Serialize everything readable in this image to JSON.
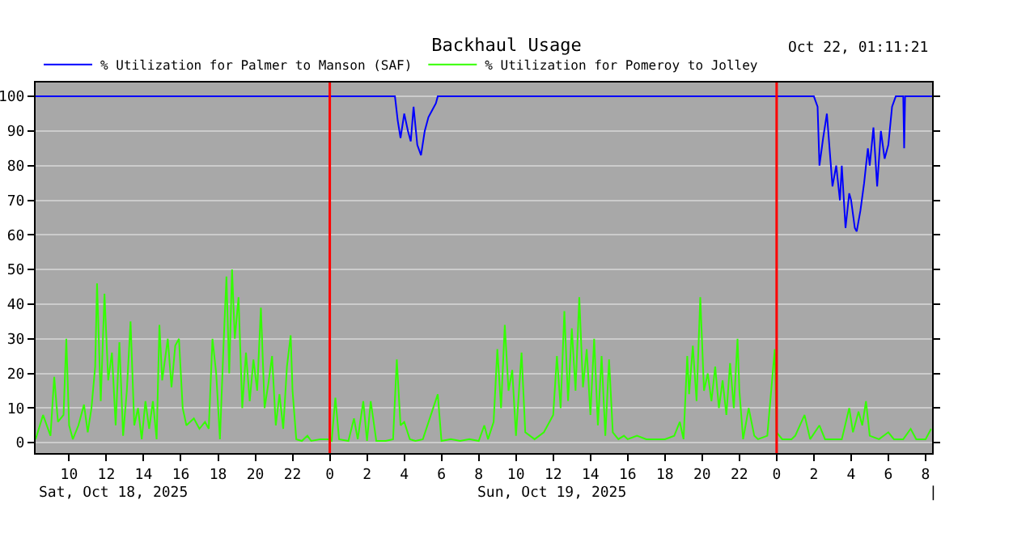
{
  "chart_data": {
    "type": "line",
    "title": "Backhaul Usage",
    "annotations": [
      "Oct 22, 01:11:21",
      "Sat, Oct 18, 2025",
      "Sun, Oct 19, 2025",
      "|"
    ],
    "xlim": [
      "2025-10-18T08:12",
      "2025-10-20T08:21"
    ],
    "xticks": [
      {
        "value": "2025-10-18T10:00",
        "label": "10"
      },
      {
        "value": "2025-10-18T12:00",
        "label": "12"
      },
      {
        "value": "2025-10-18T14:00",
        "label": "14"
      },
      {
        "value": "2025-10-18T16:00",
        "label": "16"
      },
      {
        "value": "2025-10-18T18:00",
        "label": "18"
      },
      {
        "value": "2025-10-18T20:00",
        "label": "20"
      },
      {
        "value": "2025-10-18T22:00",
        "label": "22"
      },
      {
        "value": "2025-10-19T00:00",
        "label": "0"
      },
      {
        "value": "2025-10-19T02:00",
        "label": "2"
      },
      {
        "value": "2025-10-19T04:00",
        "label": "4"
      },
      {
        "value": "2025-10-19T06:00",
        "label": "6"
      },
      {
        "value": "2025-10-19T08:00",
        "label": "8"
      },
      {
        "value": "2025-10-19T10:00",
        "label": "10"
      },
      {
        "value": "2025-10-19T12:00",
        "label": "12"
      },
      {
        "value": "2025-10-19T14:00",
        "label": "14"
      },
      {
        "value": "2025-10-19T16:00",
        "label": "16"
      },
      {
        "value": "2025-10-19T18:00",
        "label": "18"
      },
      {
        "value": "2025-10-19T20:00",
        "label": "20"
      },
      {
        "value": "2025-10-19T22:00",
        "label": "22"
      },
      {
        "value": "2025-10-20T00:00",
        "label": "0"
      },
      {
        "value": "2025-10-20T02:00",
        "label": "2"
      },
      {
        "value": "2025-10-20T04:00",
        "label": "4"
      },
      {
        "value": "2025-10-20T06:00",
        "label": "6"
      },
      {
        "value": "2025-10-20T08:00",
        "label": "8"
      }
    ],
    "ylim": [
      -3,
      104
    ],
    "yticks": [
      0,
      10,
      20,
      30,
      40,
      50,
      60,
      70,
      80,
      90,
      100
    ],
    "grid": "y",
    "legend": "top left",
    "marker": "none",
    "line_style": "solid",
    "ref_lines": [
      {
        "axis": "x",
        "value": "2025-10-19T00:00",
        "color": "#ff0000"
      },
      {
        "axis": "x",
        "value": "2025-10-20T00:00",
        "color": "#ff0000"
      }
    ],
    "series": [
      {
        "name": "% Utilization for Palmer to Manson (SAF)",
        "color": "#0000ff",
        "x": [
          "2025-10-18T08:12",
          "2025-10-19T03:30",
          "2025-10-19T03:39",
          "2025-10-19T03:48",
          "2025-10-19T04:00",
          "2025-10-19T04:12",
          "2025-10-19T04:21",
          "2025-10-19T04:30",
          "2025-10-19T04:42",
          "2025-10-19T04:54",
          "2025-10-19T05:06",
          "2025-10-19T05:18",
          "2025-10-19T05:30",
          "2025-10-19T05:42",
          "2025-10-19T05:48",
          "2025-10-20T02:00",
          "2025-10-20T02:12",
          "2025-10-20T02:18",
          "2025-10-20T02:30",
          "2025-10-20T02:42",
          "2025-10-20T02:54",
          "2025-10-20T03:00",
          "2025-10-20T03:12",
          "2025-10-20T03:24",
          "2025-10-20T03:30",
          "2025-10-20T03:42",
          "2025-10-20T03:54",
          "2025-10-20T04:00",
          "2025-10-20T04:12",
          "2025-10-20T04:18",
          "2025-10-20T04:30",
          "2025-10-20T04:42",
          "2025-10-20T04:54",
          "2025-10-20T05:00",
          "2025-10-20T05:12",
          "2025-10-20T05:24",
          "2025-10-20T05:36",
          "2025-10-20T05:48",
          "2025-10-20T06:00",
          "2025-10-20T06:12",
          "2025-10-20T06:24",
          "2025-10-20T06:48",
          "2025-10-20T06:51",
          "2025-10-20T06:54",
          "2025-10-20T08:21"
        ],
        "values": [
          100,
          100,
          93,
          88,
          95,
          90,
          87,
          97,
          86,
          83,
          90,
          94,
          96,
          98,
          100,
          100,
          97,
          80,
          88,
          95,
          81,
          74,
          80,
          70,
          80,
          62,
          72,
          70,
          62,
          61,
          67,
          75,
          85,
          80,
          91,
          74,
          90,
          82,
          86,
          97,
          100,
          100,
          85,
          100,
          100
        ]
      },
      {
        "name": "% Utilization for Pomeroy to Jolley",
        "color": "#33ff00",
        "x": [
          "2025-10-18T08:12",
          "2025-10-18T08:36",
          "2025-10-18T09:00",
          "2025-10-18T09:12",
          "2025-10-18T09:24",
          "2025-10-18T09:42",
          "2025-10-18T09:51",
          "2025-10-18T10:00",
          "2025-10-18T10:12",
          "2025-10-18T10:30",
          "2025-10-18T10:48",
          "2025-10-18T11:00",
          "2025-10-18T11:12",
          "2025-10-18T11:24",
          "2025-10-18T11:30",
          "2025-10-18T11:42",
          "2025-10-18T11:54",
          "2025-10-18T12:06",
          "2025-10-18T12:18",
          "2025-10-18T12:30",
          "2025-10-18T12:42",
          "2025-10-18T12:54",
          "2025-10-18T13:06",
          "2025-10-18T13:18",
          "2025-10-18T13:30",
          "2025-10-18T13:42",
          "2025-10-18T13:54",
          "2025-10-18T14:06",
          "2025-10-18T14:18",
          "2025-10-18T14:30",
          "2025-10-18T14:42",
          "2025-10-18T14:51",
          "2025-10-18T15:00",
          "2025-10-18T15:18",
          "2025-10-18T15:30",
          "2025-10-18T15:42",
          "2025-10-18T15:54",
          "2025-10-18T16:06",
          "2025-10-18T16:18",
          "2025-10-18T16:42",
          "2025-10-18T17:00",
          "2025-10-18T17:18",
          "2025-10-18T17:30",
          "2025-10-18T17:42",
          "2025-10-18T17:54",
          "2025-10-18T18:06",
          "2025-10-18T18:18",
          "2025-10-18T18:27",
          "2025-10-18T18:36",
          "2025-10-18T18:45",
          "2025-10-18T18:54",
          "2025-10-18T19:06",
          "2025-10-18T19:18",
          "2025-10-18T19:30",
          "2025-10-18T19:42",
          "2025-10-18T19:54",
          "2025-10-18T20:06",
          "2025-10-18T20:18",
          "2025-10-18T20:30",
          "2025-10-18T20:42",
          "2025-10-18T20:54",
          "2025-10-18T21:06",
          "2025-10-18T21:18",
          "2025-10-18T21:30",
          "2025-10-18T21:42",
          "2025-10-18T21:54",
          "2025-10-18T22:00",
          "2025-10-18T22:12",
          "2025-10-18T22:30",
          "2025-10-18T22:48",
          "2025-10-18T23:00",
          "2025-10-18T23:30",
          "2025-10-18T23:54",
          "2025-10-19T00:06",
          "2025-10-19T00:18",
          "2025-10-19T00:30",
          "2025-10-19T01:00",
          "2025-10-19T01:18",
          "2025-10-19T01:30",
          "2025-10-19T01:48",
          "2025-10-19T02:00",
          "2025-10-19T02:12",
          "2025-10-19T02:30",
          "2025-10-19T03:00",
          "2025-10-19T03:24",
          "2025-10-19T03:36",
          "2025-10-19T03:48",
          "2025-10-19T04:00",
          "2025-10-19T04:18",
          "2025-10-19T04:36",
          "2025-10-19T05:00",
          "2025-10-19T05:48",
          "2025-10-19T06:00",
          "2025-10-19T06:30",
          "2025-10-19T07:00",
          "2025-10-19T07:30",
          "2025-10-19T08:00",
          "2025-10-19T08:18",
          "2025-10-19T08:30",
          "2025-10-19T08:48",
          "2025-10-19T09:00",
          "2025-10-19T09:12",
          "2025-10-19T09:24",
          "2025-10-19T09:36",
          "2025-10-19T09:48",
          "2025-10-19T10:00",
          "2025-10-19T10:18",
          "2025-10-19T10:30",
          "2025-10-19T11:00",
          "2025-10-19T11:30",
          "2025-10-19T11:48",
          "2025-10-19T12:00",
          "2025-10-19T12:12",
          "2025-10-19T12:24",
          "2025-10-19T12:36",
          "2025-10-19T12:48",
          "2025-10-19T13:00",
          "2025-10-19T13:12",
          "2025-10-19T13:24",
          "2025-10-19T13:36",
          "2025-10-19T13:48",
          "2025-10-19T14:00",
          "2025-10-19T14:12",
          "2025-10-19T14:24",
          "2025-10-19T14:36",
          "2025-10-19T14:48",
          "2025-10-19T15:00",
          "2025-10-19T15:12",
          "2025-10-19T15:30",
          "2025-10-19T15:48",
          "2025-10-19T16:00",
          "2025-10-19T16:30",
          "2025-10-19T17:00",
          "2025-10-19T17:30",
          "2025-10-19T18:00",
          "2025-10-19T18:30",
          "2025-10-19T18:48",
          "2025-10-19T19:00",
          "2025-10-19T19:12",
          "2025-10-19T19:18",
          "2025-10-19T19:30",
          "2025-10-19T19:42",
          "2025-10-19T19:54",
          "2025-10-19T20:06",
          "2025-10-19T20:18",
          "2025-10-19T20:30",
          "2025-10-19T20:42",
          "2025-10-19T20:54",
          "2025-10-19T21:06",
          "2025-10-19T21:18",
          "2025-10-19T21:30",
          "2025-10-19T21:42",
          "2025-10-19T21:54",
          "2025-10-19T22:00",
          "2025-10-19T22:12",
          "2025-10-19T22:30",
          "2025-10-19T22:48",
          "2025-10-19T23:00",
          "2025-10-19T23:30",
          "2025-10-19T23:54",
          "2025-10-20T00:00",
          "2025-10-20T00:18",
          "2025-10-20T00:48",
          "2025-10-20T01:00",
          "2025-10-20T01:30",
          "2025-10-20T01:48",
          "2025-10-20T02:18",
          "2025-10-20T02:36",
          "2025-10-20T03:00",
          "2025-10-20T03:30",
          "2025-10-20T03:54",
          "2025-10-20T04:06",
          "2025-10-20T04:24",
          "2025-10-20T04:36",
          "2025-10-20T04:48",
          "2025-10-20T05:00",
          "2025-10-20T05:30",
          "2025-10-20T06:00",
          "2025-10-20T06:18",
          "2025-10-20T06:48",
          "2025-10-20T07:12",
          "2025-10-20T07:30",
          "2025-10-20T08:00",
          "2025-10-20T08:18"
        ],
        "values": [
          1,
          8,
          2,
          19,
          6,
          8,
          30,
          5,
          1,
          5,
          11,
          3,
          10,
          22,
          46,
          12,
          43,
          18,
          26,
          5,
          29,
          2,
          15,
          35,
          5,
          10,
          1,
          12,
          4,
          12,
          1,
          34,
          18,
          30,
          16,
          28,
          30,
          10,
          5,
          7,
          4,
          6,
          4,
          30,
          20,
          1,
          29,
          48,
          20,
          50,
          30,
          42,
          10,
          26,
          12,
          24,
          15,
          39,
          10,
          17,
          25,
          5,
          14,
          4,
          22,
          31,
          15,
          1,
          0.5,
          2,
          0.5,
          1,
          1,
          0.5,
          13,
          1,
          0.5,
          7,
          1,
          12,
          0.5,
          12,
          0.5,
          0.5,
          1,
          24,
          5,
          6,
          1,
          0.5,
          1,
          14,
          0.5,
          1,
          0.5,
          1,
          0.5,
          5,
          1,
          6,
          27,
          10,
          34,
          15,
          21,
          2,
          26,
          3,
          1,
          3,
          6,
          8,
          25,
          10,
          38,
          12,
          33,
          15,
          42,
          16,
          27,
          8,
          30,
          5,
          25,
          2,
          24,
          3,
          1,
          2,
          1,
          2,
          1,
          1,
          1,
          2,
          6,
          1,
          25,
          14,
          28,
          12,
          42,
          15,
          20,
          12,
          22,
          10,
          18,
          8,
          23,
          10,
          30,
          15,
          1,
          10,
          2,
          1,
          2,
          27,
          3,
          1,
          1,
          2,
          8,
          1,
          5,
          1,
          1,
          1,
          10,
          3,
          9,
          5,
          12,
          2,
          1,
          3,
          1,
          1,
          4,
          1,
          1,
          4
        ]
      }
    ]
  }
}
